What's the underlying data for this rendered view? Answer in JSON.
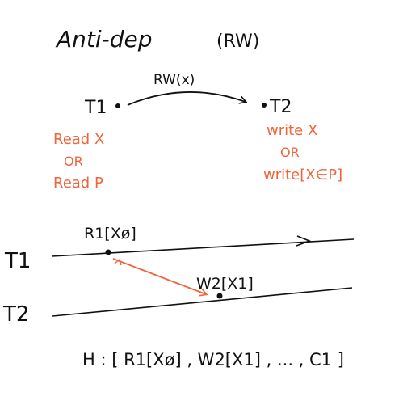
{
  "title": "Anti-dep",
  "title_suffix": "(RW)",
  "top": {
    "edge_label": "RW(x)",
    "node_from": "T1",
    "node_to": "T2",
    "from_ops": [
      "Read X",
      "OR",
      "Read P"
    ],
    "to_ops": [
      "write X",
      "OR",
      "write[X∈P]"
    ]
  },
  "timeline": {
    "t1_label": "T1",
    "t2_label": "T2",
    "read_label": "R1[Xø]",
    "write_label": "W2[X1]"
  },
  "history": "H : [ R1[Xø] , W2[X1] , ... , C1 ]",
  "colors": {
    "ink": "#111111",
    "accent": "#f0643a"
  }
}
